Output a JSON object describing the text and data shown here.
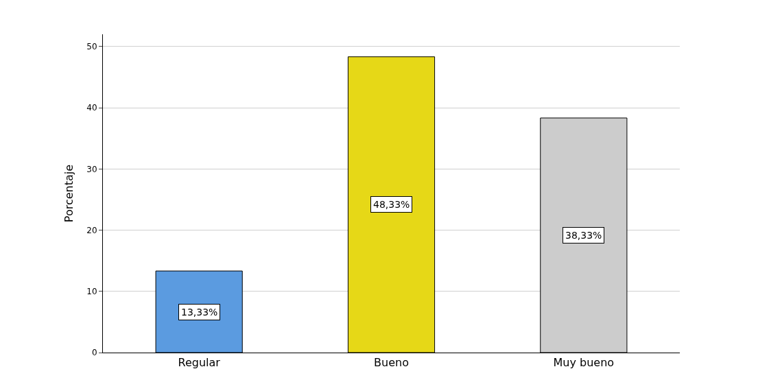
{
  "chart_data": {
    "type": "bar",
    "ylabel": "Porcentaje",
    "categories": [
      "Regular",
      "Bueno",
      "Muy bueno"
    ],
    "values": [
      13.33,
      48.33,
      38.33
    ],
    "colors": [
      "#5b9be0",
      "#e6d817",
      "#cccccc"
    ],
    "value_labels": [
      "13,33%",
      "48,33%",
      "38,33%"
    ],
    "ylim": [
      0,
      52
    ],
    "yticks": [
      0,
      10,
      20,
      30,
      40,
      50
    ],
    "grid": "y",
    "legend": false
  }
}
